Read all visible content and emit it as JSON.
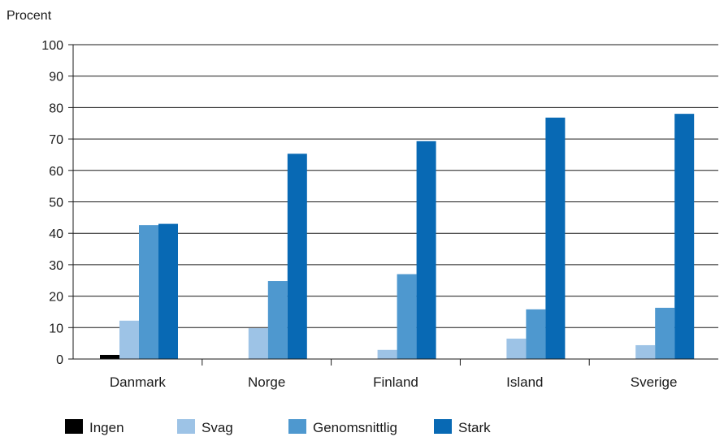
{
  "chart_data": {
    "type": "bar",
    "ylabel": "Procent",
    "ylim": [
      0,
      100
    ],
    "yticks": [
      0,
      10,
      20,
      30,
      40,
      50,
      60,
      70,
      80,
      90,
      100
    ],
    "grid": true,
    "legend_position": "bottom",
    "categories": [
      "Danmark",
      "Norge",
      "Finland",
      "Island",
      "Sverige"
    ],
    "series": [
      {
        "name": "Ingen",
        "color": "#000000",
        "values": [
          1.3,
          0,
          0,
          0,
          0
        ]
      },
      {
        "name": "Svag",
        "color": "#9dc3e6",
        "values": [
          12.2,
          9.8,
          2.9,
          6.5,
          4.4
        ]
      },
      {
        "name": "Genomsnittlig",
        "color": "#4e98cf",
        "values": [
          42.6,
          24.8,
          27.0,
          15.8,
          16.3
        ]
      },
      {
        "name": "Stark",
        "color": "#0869b4",
        "values": [
          43.0,
          65.3,
          69.3,
          76.8,
          78.0
        ]
      }
    ]
  }
}
